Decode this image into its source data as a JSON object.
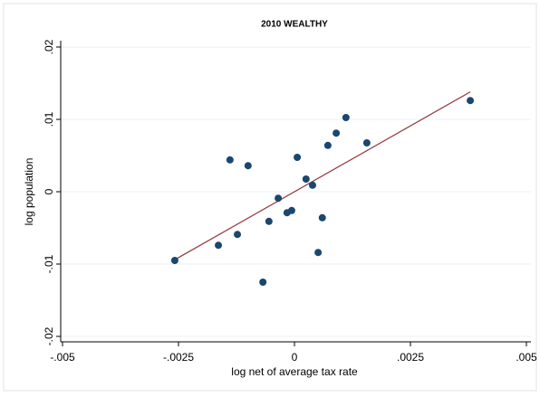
{
  "chart_data": {
    "type": "scatter",
    "title": "2010 WEALTHY",
    "xlabel": "log net of average tax rate",
    "ylabel": "log population",
    "xlim": [
      -0.005,
      0.005
    ],
    "ylim": [
      -0.02,
      0.02
    ],
    "xticks": [
      {
        "value": -0.005,
        "label": "-.005"
      },
      {
        "value": -0.0025,
        "label": "-.0025"
      },
      0,
      {
        "value": 0.0025,
        "label": ".0025"
      },
      {
        "value": 0.005,
        "label": ".005"
      }
    ],
    "yticks": [
      {
        "value": -0.02,
        "label": "-.02"
      },
      {
        "value": -0.01,
        "label": "-.01"
      },
      0,
      {
        "value": 0.01,
        "label": ".01"
      },
      {
        "value": 0.02,
        "label": ".02"
      }
    ],
    "grid": true,
    "color": "#1a476f",
    "x": [
      0.00379,
      0.00111,
      0.0009,
      0.00156,
      0.00072,
      6e-05,
      -0.00139,
      -0.001,
      0.00025,
      0.00039,
      -0.00035,
      -6e-05,
      -0.00016,
      -0.00055,
      0.0006,
      -0.00123,
      -0.00164,
      -0.00258,
      0.00051,
      -0.00068
    ],
    "values": [
      0.0126,
      0.01025,
      0.0081,
      0.00675,
      0.0064,
      0.00475,
      0.0044,
      0.0036,
      0.00175,
      0.0009,
      -0.0009,
      -0.0026,
      -0.0029,
      -0.0041,
      -0.0036,
      -0.0059,
      -0.0074,
      -0.0095,
      -0.0084,
      -0.0125
    ],
    "fit_line": {
      "x": [
        -0.00258,
        0.00379
      ],
      "y": [
        -0.0094,
        0.0138
      ],
      "color": "#90353b"
    }
  }
}
